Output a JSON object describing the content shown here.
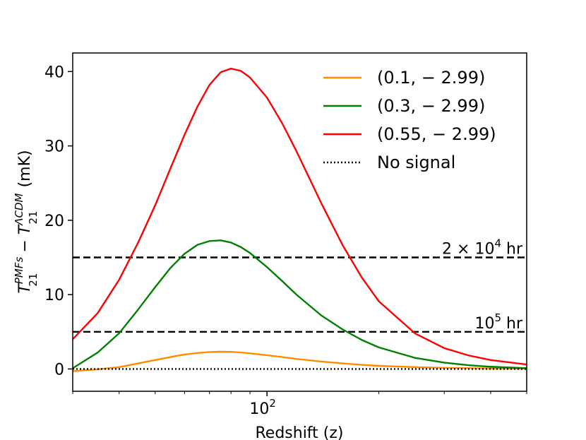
{
  "chart_data": {
    "type": "line",
    "title": "",
    "xlabel": "Redshift (z)",
    "ylabel": {
      "main": "T",
      "sub1": "21",
      "sup1": "PMFs",
      "minus": " − ",
      "main2": "T",
      "sub2": "21",
      "sup2": "ΛCDM",
      "unit": " (mK)"
    },
    "xscale": "log",
    "xlim": [
      30,
      500
    ],
    "ylim": [
      -3,
      42.5
    ],
    "grid": false,
    "legend_position": "top-right",
    "x_ticks": [
      {
        "value": 100,
        "base": "10",
        "exp": "2"
      }
    ],
    "y_ticks": [
      {
        "value": 0,
        "label": "0"
      },
      {
        "value": 10,
        "label": "10"
      },
      {
        "value": 20,
        "label": "20"
      },
      {
        "value": 30,
        "label": "30"
      },
      {
        "value": 40,
        "label": "40"
      }
    ],
    "series": [
      {
        "name": "(0.1, − 2.99)",
        "color": "#ff8c00",
        "style": "solid",
        "x": [
          30,
          35,
          40,
          45,
          50,
          55,
          60,
          65,
          70,
          75,
          80,
          85,
          90,
          100,
          110,
          120,
          140,
          160,
          180,
          200,
          250,
          300,
          350,
          400,
          500
        ],
        "values": [
          -0.3,
          -0.05,
          0.25,
          0.75,
          1.2,
          1.6,
          1.95,
          2.15,
          2.28,
          2.32,
          2.3,
          2.22,
          2.1,
          1.85,
          1.6,
          1.35,
          1.0,
          0.75,
          0.55,
          0.42,
          0.25,
          0.15,
          0.1,
          0.07,
          0.03
        ]
      },
      {
        "name": "(0.3, − 2.99)",
        "color": "#008000",
        "style": "solid",
        "x": [
          30,
          35,
          40,
          45,
          50,
          55,
          60,
          65,
          70,
          75,
          80,
          85,
          90,
          100,
          110,
          120,
          140,
          160,
          180,
          200,
          250,
          300,
          350,
          400,
          500
        ],
        "values": [
          0.1,
          2.2,
          4.8,
          8.0,
          11.0,
          13.6,
          15.5,
          16.7,
          17.2,
          17.3,
          17.0,
          16.4,
          15.6,
          13.7,
          11.8,
          10.0,
          7.2,
          5.3,
          3.9,
          2.9,
          1.5,
          0.85,
          0.5,
          0.3,
          0.1
        ]
      },
      {
        "name": "(0.55, − 2.99)",
        "color": "#ff0000",
        "style": "solid",
        "x": [
          30,
          35,
          40,
          45,
          50,
          55,
          60,
          65,
          70,
          75,
          80,
          85,
          90,
          100,
          110,
          120,
          140,
          160,
          180,
          200,
          250,
          300,
          350,
          400,
          500
        ],
        "values": [
          4.0,
          7.5,
          12.0,
          17.0,
          22.0,
          27.0,
          31.5,
          35.3,
          38.2,
          39.9,
          40.4,
          40.1,
          39.2,
          36.5,
          33.0,
          29.3,
          22.3,
          16.6,
          12.3,
          9.1,
          4.8,
          2.8,
          1.8,
          1.2,
          0.6
        ]
      },
      {
        "name": "No signal",
        "color": "#000000",
        "style": "dotted",
        "x": [
          30,
          500
        ],
        "values": [
          0,
          0
        ]
      }
    ],
    "hlines": [
      {
        "value": 15,
        "style": "dashed",
        "label_base": "2 × 10",
        "label_exp": "4",
        "label_suffix": " hr"
      },
      {
        "value": 5,
        "style": "dashed",
        "label_base": "10",
        "label_exp": "5",
        "label_suffix": " hr"
      }
    ]
  }
}
